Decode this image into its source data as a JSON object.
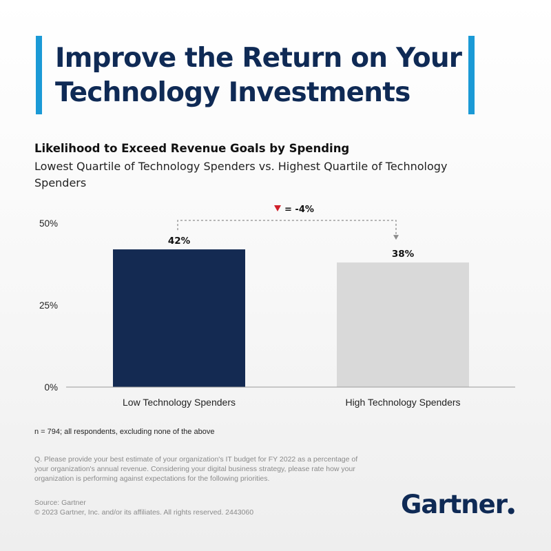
{
  "header": {
    "title_line1": "Improve the Return on Your",
    "title_line2": "Technology Investments"
  },
  "chart_data": {
    "type": "bar",
    "title": "Likelihood to Exceed Revenue Goals by Spending",
    "subtitle": "Lowest Quartile of Technology Spenders vs. Highest Quartile of Technology Spenders",
    "categories": [
      "Low Technology Spenders",
      "High Technology Spenders"
    ],
    "values": [
      42,
      38
    ],
    "value_labels": [
      "42%",
      "38%"
    ],
    "bar_colors": [
      "#142a52",
      "#d9d9d9"
    ],
    "ylim": [
      0,
      50
    ],
    "yticks": [
      0,
      25,
      50
    ],
    "ytick_labels": [
      "0%",
      "25%",
      "50%"
    ],
    "xlabel": "",
    "ylabel": "",
    "grid": false,
    "annotation": {
      "text": "= -4%",
      "marker_color": "#d0202a",
      "marker": "down-triangle"
    }
  },
  "footnotes": {
    "sample": "n = 794; all respondents, excluding none of the above",
    "question": "Q. Please provide your best estimate of your organization's IT budget for FY 2022 as a percentage of your organization's annual revenue. Considering your digital business strategy, please rate how your organization is performing against expectations for the following priorities.",
    "source": "Source: Gartner",
    "copyright": "© 2023 Gartner, Inc. and/or its affiliates. All rights reserved. 2443060"
  },
  "brand": {
    "logo_text": "Gartner",
    "logo_dot": "●",
    "primary_color": "#0f2a55",
    "accent_color": "#1b9ad6"
  }
}
